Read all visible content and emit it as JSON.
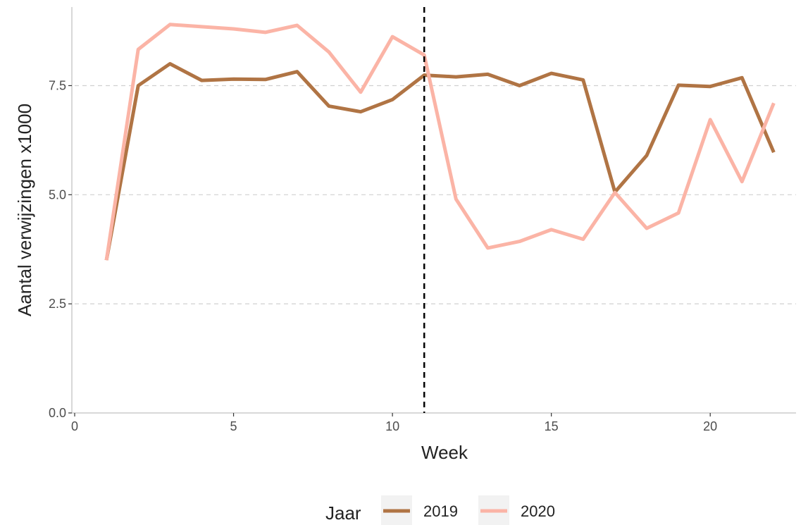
{
  "chart_data": {
    "type": "line",
    "xlabel": "Week",
    "ylabel": "Aantal verwijzingen x1000",
    "xlim": [
      0,
      22.7
    ],
    "ylim": [
      0,
      9.3
    ],
    "xticks": [
      0,
      5,
      10,
      15,
      20
    ],
    "xtick_labels": [
      "0",
      "5",
      "10",
      "15",
      "20"
    ],
    "yticks": [
      0,
      2.5,
      5,
      7.5
    ],
    "ytick_labels": [
      "0.0",
      "2.5",
      "5.0",
      "7.5"
    ],
    "grid": "horizontal dashed",
    "vline_x": 11,
    "x": [
      1,
      2,
      3,
      4,
      5,
      6,
      7,
      8,
      9,
      10,
      11,
      12,
      13,
      14,
      15,
      16,
      17,
      18,
      19,
      20,
      21,
      22
    ],
    "series": [
      {
        "name": "2019",
        "color": "#b07444",
        "values": [
          3.5,
          7.5,
          8.0,
          7.62,
          7.65,
          7.64,
          7.82,
          7.03,
          6.9,
          7.18,
          7.74,
          7.7,
          7.76,
          7.5,
          7.78,
          7.63,
          5.06,
          5.9,
          7.51,
          7.48,
          7.68,
          5.97
        ]
      },
      {
        "name": "2020",
        "color": "#fbb4a6",
        "values": [
          3.5,
          8.33,
          8.9,
          8.85,
          8.8,
          8.72,
          8.88,
          8.27,
          7.35,
          8.62,
          8.2,
          4.9,
          3.78,
          3.93,
          4.2,
          3.98,
          5.05,
          4.23,
          4.58,
          6.72,
          5.3,
          7.1
        ]
      }
    ],
    "legend": {
      "title": "Jaar",
      "position": "bottom"
    }
  }
}
